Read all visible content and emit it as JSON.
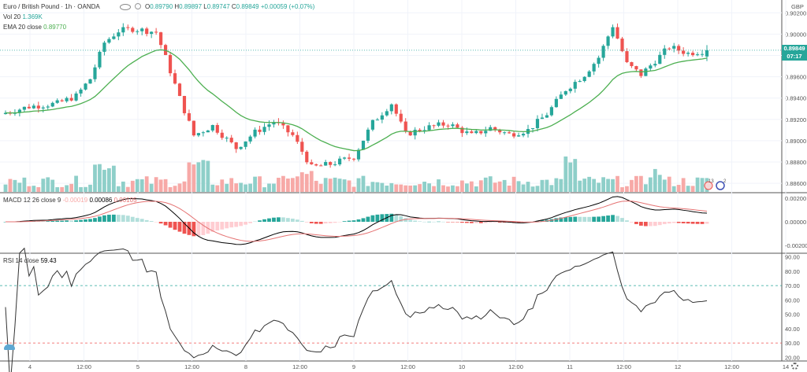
{
  "header": {
    "symbol": "Euro / British Pound",
    "interval": "1h",
    "exchange": "OANDA",
    "ohlc": {
      "O": "0.89790",
      "H": "0.89897",
      "L": "0.89747",
      "C": "0.89849",
      "change": "+0.00059 (+0.07%)"
    },
    "vol_label": "Vol 20",
    "vol_value": "1.369K",
    "ema_label": "EMA 20 close",
    "ema_value": "0.89770",
    "currency": "GBP"
  },
  "price_tag": {
    "price": "0.89849",
    "countdown": "07:17"
  },
  "macd_header": {
    "label": "MACD 12 26 close 9",
    "hist": "-0.00019",
    "macd": "0.00086",
    "signal": "0.00105"
  },
  "rsi_header": {
    "label": "RSI 14 close",
    "value": "59.43"
  },
  "badges": {
    "events": "13",
    "other": "2"
  },
  "colors": {
    "up": "#26a69a",
    "down": "#ef5350",
    "ema": "#4caf50",
    "vol_up": "#8ecfc9",
    "vol_down": "#f7a9a7",
    "rsi_line": "#333333",
    "macd_line": "#000000",
    "signal_line": "#e57373"
  },
  "chart_data": [
    {
      "type": "candlestick",
      "title": "Euro / British Pound · 1h · OANDA",
      "y_axis_ticks": [
        "0.90200",
        "0.90000",
        "0.89800",
        "0.89600",
        "0.89400",
        "0.89200",
        "0.89000",
        "0.88800",
        "0.88600"
      ],
      "ylim": [
        0.8852,
        0.9032
      ],
      "x_axis_ticks": [
        "4",
        "12:00",
        "5",
        "12:00",
        "8",
        "12:00",
        "9",
        "12:00",
        "10",
        "12:00",
        "11",
        "12:00",
        "12",
        "12:00",
        "14"
      ],
      "candles": [],
      "ema": [],
      "volume": []
    },
    {
      "type": "line",
      "title": "MACD 12 26 close 9",
      "y_axis_ticks": [
        "0.00200",
        "0.00000",
        "-0.00200"
      ],
      "ylim": [
        -0.0026,
        0.0024
      ],
      "series": [
        {
          "name": "MACD",
          "values": []
        },
        {
          "name": "Signal",
          "values": []
        },
        {
          "name": "Histogram",
          "values": []
        }
      ]
    },
    {
      "type": "line",
      "title": "RSI 14 close",
      "y_axis_ticks": [
        "90.00",
        "80.00",
        "70.00",
        "60.00",
        "50.00",
        "40.00",
        "30.00",
        "20.00"
      ],
      "ylim": [
        18,
        92
      ],
      "levels": [
        70,
        30
      ],
      "series": [
        {
          "name": "RSI",
          "values": []
        }
      ]
    }
  ]
}
